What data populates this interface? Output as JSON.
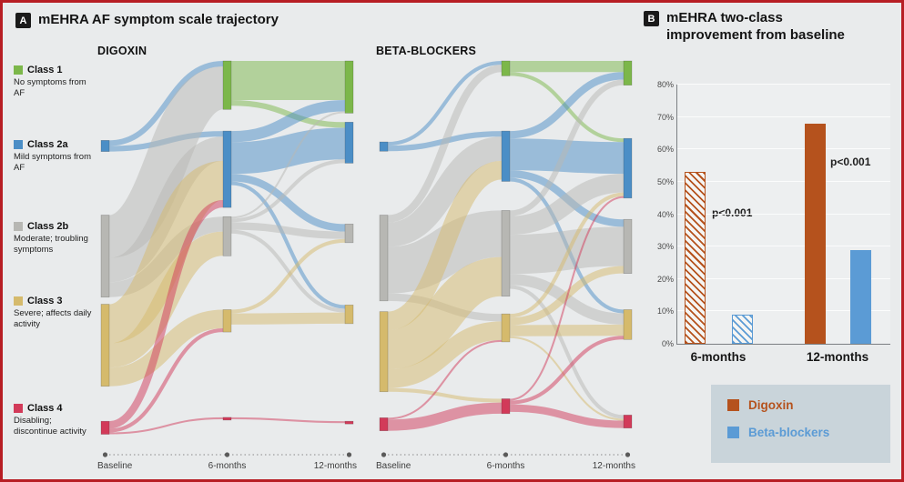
{
  "colors": {
    "class1": "#7cb74a",
    "class2a": "#4b8ec6",
    "class2b": "#b7b7b3",
    "class3": "#d5ba6c",
    "class4": "#d23a59",
    "digoxin": "#b5521d",
    "beta_blockers": "#5b9bd5",
    "frame": "#b71e24"
  },
  "panelA": {
    "badge": "A",
    "title": "mEHRA AF symptom scale trajectory",
    "legend": [
      {
        "label": "Class 1",
        "desc": "No symptoms from AF",
        "color_key": "class1"
      },
      {
        "label": "Class 2a",
        "desc": "Mild symptoms from AF",
        "color_key": "class2a"
      },
      {
        "label": "Class 2b",
        "desc": "Moderate; troubling symptoms",
        "color_key": "class2b"
      },
      {
        "label": "Class 3",
        "desc": "Severe; affects daily activity",
        "color_key": "class3"
      },
      {
        "label": "Class 4",
        "desc": "Disabling; discontinue activity",
        "color_key": "class4"
      }
    ]
  },
  "panelB": {
    "badge": "B",
    "title": "mEHRA two-class improvement from baseline",
    "legend": [
      {
        "label": "Digoxin",
        "color_key": "digoxin"
      },
      {
        "label": "Beta-blockers",
        "color_key": "beta_blockers"
      }
    ]
  },
  "chart_data": [
    {
      "type": "sankey",
      "title": "DIGOXIN",
      "units": "percent of patients (estimated from figure)",
      "column_labels": [
        "Baseline",
        "6-months",
        "12-months"
      ],
      "classes": [
        "1",
        "2a",
        "2b",
        "3",
        "4"
      ],
      "nodes": [
        {
          "col": 0,
          "cls": "2a",
          "top": 0.205
        },
        {
          "col": 0,
          "cls": "2b",
          "top": 0.398
        },
        {
          "col": 0,
          "cls": "3",
          "top": 0.628
        },
        {
          "col": 0,
          "cls": "4",
          "top": 0.93
        },
        {
          "col": 1,
          "cls": "1",
          "top": 0.0
        },
        {
          "col": 1,
          "cls": "2a",
          "top": 0.181
        },
        {
          "col": 1,
          "cls": "2b",
          "top": 0.402
        },
        {
          "col": 1,
          "cls": "3",
          "top": 0.642
        },
        {
          "col": 1,
          "cls": "4",
          "top": 0.92
        },
        {
          "col": 2,
          "cls": "1",
          "top": 0.0
        },
        {
          "col": 2,
          "cls": "2a",
          "top": 0.158
        },
        {
          "col": 2,
          "cls": "2b",
          "top": 0.421
        },
        {
          "col": 2,
          "cls": "3",
          "top": 0.63
        },
        {
          "col": 2,
          "cls": "4",
          "top": 0.93
        }
      ],
      "flows": [
        {
          "col": 0,
          "from": "2a",
          "to": "1",
          "pct": 3
        },
        {
          "col": 0,
          "from": "2a",
          "to": "2a",
          "pct": 3
        },
        {
          "col": 0,
          "from": "2b",
          "to": "1",
          "pct": 23
        },
        {
          "col": 0,
          "from": "2b",
          "to": "2a",
          "pct": 13
        },
        {
          "col": 0,
          "from": "2b",
          "to": "2b",
          "pct": 8
        },
        {
          "col": 0,
          "from": "3",
          "to": "2a",
          "pct": 21
        },
        {
          "col": 0,
          "from": "3",
          "to": "2b",
          "pct": 13
        },
        {
          "col": 0,
          "from": "3",
          "to": "3",
          "pct": 10
        },
        {
          "col": 0,
          "from": "4",
          "to": "2a",
          "pct": 4
        },
        {
          "col": 0,
          "from": "4",
          "to": "3",
          "pct": 2
        },
        {
          "col": 0,
          "from": "4",
          "to": "4",
          "pct": 1
        },
        {
          "col": 1,
          "from": "1",
          "to": "1",
          "pct": 21
        },
        {
          "col": 1,
          "from": "1",
          "to": "2a",
          "pct": 3
        },
        {
          "col": 1,
          "from": "2a",
          "to": "1",
          "pct": 6
        },
        {
          "col": 1,
          "from": "2a",
          "to": "2a",
          "pct": 17
        },
        {
          "col": 1,
          "from": "2a",
          "to": "2b",
          "pct": 4
        },
        {
          "col": 1,
          "from": "2a",
          "to": "3",
          "pct": 2
        },
        {
          "col": 1,
          "from": "2b",
          "to": "1",
          "pct": 1
        },
        {
          "col": 1,
          "from": "2b",
          "to": "2a",
          "pct": 2
        },
        {
          "col": 1,
          "from": "2b",
          "to": "2b",
          "pct": 4
        },
        {
          "col": 1,
          "from": "2b",
          "to": "3",
          "pct": 2
        },
        {
          "col": 1,
          "from": "3",
          "to": "2b",
          "pct": 2
        },
        {
          "col": 1,
          "from": "3",
          "to": "3",
          "pct": 6
        },
        {
          "col": 1,
          "from": "4",
          "to": "4",
          "pct": 1
        }
      ]
    },
    {
      "type": "sankey",
      "title": "BETA-BLOCKERS",
      "units": "percent of patients (estimated from figure)",
      "column_labels": [
        "Baseline",
        "6-months",
        "12-months"
      ],
      "classes": [
        "1",
        "2a",
        "2b",
        "3",
        "4"
      ],
      "nodes": [
        {
          "col": 0,
          "cls": "2a",
          "top": 0.209
        },
        {
          "col": 0,
          "cls": "2b",
          "top": 0.398
        },
        {
          "col": 0,
          "cls": "3",
          "top": 0.647
        },
        {
          "col": 0,
          "cls": "4",
          "top": 0.921
        },
        {
          "col": 1,
          "cls": "1",
          "top": 0.0
        },
        {
          "col": 1,
          "cls": "2a",
          "top": 0.181
        },
        {
          "col": 1,
          "cls": "2b",
          "top": 0.386
        },
        {
          "col": 1,
          "cls": "3",
          "top": 0.653
        },
        {
          "col": 1,
          "cls": "4",
          "top": 0.872
        },
        {
          "col": 2,
          "cls": "1",
          "top": 0.0
        },
        {
          "col": 2,
          "cls": "2a",
          "top": 0.2
        },
        {
          "col": 2,
          "cls": "2b",
          "top": 0.409
        },
        {
          "col": 2,
          "cls": "3",
          "top": 0.642
        },
        {
          "col": 2,
          "cls": "4",
          "top": 0.914
        }
      ],
      "flows": [
        {
          "col": 0,
          "from": "2a",
          "to": "1",
          "pct": 2
        },
        {
          "col": 0,
          "from": "2a",
          "to": "2a",
          "pct": 3
        },
        {
          "col": 0,
          "from": "2b",
          "to": "1",
          "pct": 4
        },
        {
          "col": 0,
          "from": "2b",
          "to": "2a",
          "pct": 13
        },
        {
          "col": 0,
          "from": "2b",
          "to": "2b",
          "pct": 25
        },
        {
          "col": 0,
          "from": "2b",
          "to": "3",
          "pct": 4
        },
        {
          "col": 0,
          "from": "3",
          "to": "2a",
          "pct": 10
        },
        {
          "col": 0,
          "from": "3",
          "to": "2b",
          "pct": 21
        },
        {
          "col": 0,
          "from": "3",
          "to": "3",
          "pct": 10
        },
        {
          "col": 0,
          "from": "3",
          "to": "4",
          "pct": 2
        },
        {
          "col": 0,
          "from": "4",
          "to": "3",
          "pct": 1
        },
        {
          "col": 0,
          "from": "4",
          "to": "4",
          "pct": 6
        },
        {
          "col": 1,
          "from": "1",
          "to": "1",
          "pct": 6
        },
        {
          "col": 1,
          "from": "1",
          "to": "2a",
          "pct": 2
        },
        {
          "col": 1,
          "from": "2a",
          "to": "1",
          "pct": 4
        },
        {
          "col": 1,
          "from": "2a",
          "to": "2a",
          "pct": 17
        },
        {
          "col": 1,
          "from": "2a",
          "to": "2b",
          "pct": 4
        },
        {
          "col": 1,
          "from": "2a",
          "to": "3",
          "pct": 2
        },
        {
          "col": 1,
          "from": "2b",
          "to": "1",
          "pct": 3
        },
        {
          "col": 1,
          "from": "2b",
          "to": "2a",
          "pct": 10
        },
        {
          "col": 1,
          "from": "2b",
          "to": "2b",
          "pct": 21
        },
        {
          "col": 1,
          "from": "2b",
          "to": "3",
          "pct": 6
        },
        {
          "col": 1,
          "from": "2b",
          "to": "4",
          "pct": 2
        },
        {
          "col": 1,
          "from": "3",
          "to": "2a",
          "pct": 2
        },
        {
          "col": 1,
          "from": "3",
          "to": "2b",
          "pct": 4
        },
        {
          "col": 1,
          "from": "3",
          "to": "3",
          "pct": 6
        },
        {
          "col": 1,
          "from": "3",
          "to": "4",
          "pct": 1
        },
        {
          "col": 1,
          "from": "4",
          "to": "2a",
          "pct": 1
        },
        {
          "col": 1,
          "from": "4",
          "to": "3",
          "pct": 2
        },
        {
          "col": 1,
          "from": "4",
          "to": "4",
          "pct": 4
        }
      ]
    },
    {
      "type": "bar",
      "title": "mEHRA two-class improvement from baseline",
      "categories": [
        "6-months",
        "12-months"
      ],
      "series": [
        {
          "name": "Digoxin",
          "color_key": "digoxin",
          "values": [
            53,
            68
          ]
        },
        {
          "name": "Beta-blockers",
          "color_key": "beta_blockers",
          "values": [
            9,
            29
          ]
        }
      ],
      "bar_styles": [
        "hatched",
        "solid"
      ],
      "ylim": [
        0,
        80
      ],
      "yticks": [
        "0%",
        "10%",
        "20%",
        "30%",
        "40%",
        "50%",
        "60%",
        "70%",
        "80%"
      ],
      "grid": true,
      "legend_position": "bottom-right",
      "annotations": [
        {
          "text": "p<0.001",
          "category": "6-months"
        },
        {
          "text": "p<0.001",
          "category": "12-months"
        }
      ]
    }
  ]
}
